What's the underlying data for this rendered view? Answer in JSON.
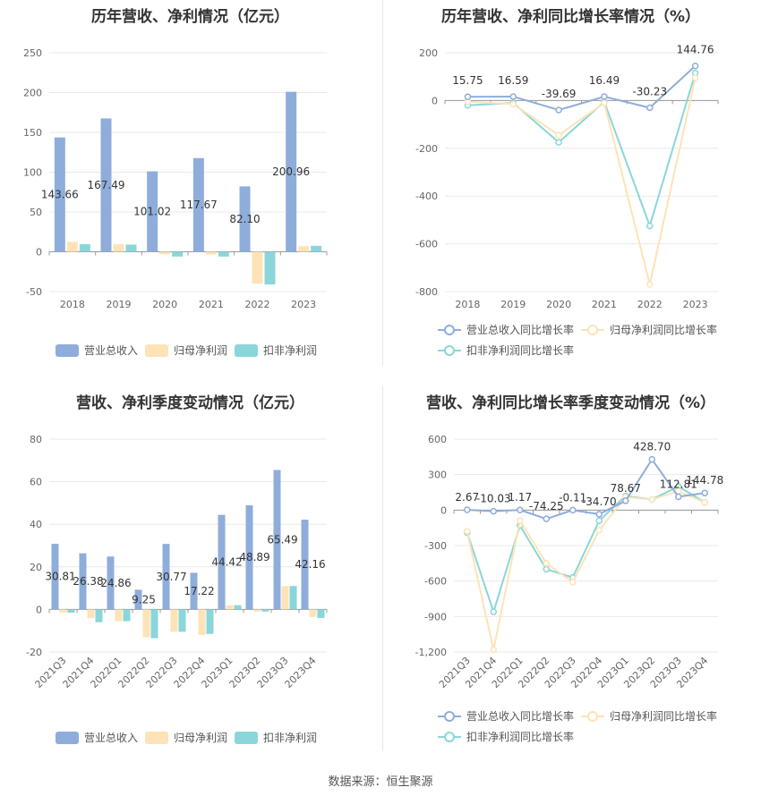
{
  "source": "数据来源：恒生聚源",
  "colors": {
    "revenue": "#8eaddb",
    "net_profit": "#fde3b6",
    "deducted": "#8ad6d9",
    "grid": "#e8e8e8",
    "axis": "#999999",
    "text": "#666666"
  },
  "chart_data": [
    {
      "type": "bar",
      "title": "历年营收、净利情况（亿元）",
      "categories": [
        "2018",
        "2019",
        "2020",
        "2021",
        "2022",
        "2023"
      ],
      "series": [
        {
          "name": "营业总收入",
          "values": [
            143.66,
            167.49,
            101.02,
            117.67,
            82.1,
            200.96
          ]
        },
        {
          "name": "归母净利润",
          "values": [
            12.5,
            9.5,
            -3.0,
            -3.5,
            -40.0,
            7.0
          ]
        },
        {
          "name": "扣非净利润",
          "values": [
            9.5,
            9.0,
            -6.0,
            -6.0,
            -41.0,
            7.5
          ]
        }
      ],
      "data_labels": [
        "143.66",
        "167.49",
        "101.02",
        "117.67",
        "82.10",
        "200.96"
      ],
      "ylim": [
        -50,
        250
      ],
      "yticks": [
        "-50",
        "0",
        "50",
        "100",
        "150",
        "200",
        "250"
      ],
      "grid": true,
      "legend": "bottom"
    },
    {
      "type": "line",
      "title": "历年营收、净利同比增长率情况（%）",
      "categories": [
        "2018",
        "2019",
        "2020",
        "2021",
        "2022",
        "2023"
      ],
      "series": [
        {
          "name": "营业总收入同比增长率",
          "values": [
            15.75,
            16.59,
            -39.69,
            16.49,
            -30.23,
            144.76
          ]
        },
        {
          "name": "归母净利润同比增长率",
          "values": [
            -5,
            -15,
            -145,
            -10,
            -770,
            95
          ]
        },
        {
          "name": "扣非净利润同比增长率",
          "values": [
            -20,
            -10,
            -175,
            -5,
            -525,
            115
          ]
        }
      ],
      "data_labels": [
        "15.75",
        "16.59",
        "-39.69",
        "16.49",
        "-30.23",
        "144.76"
      ],
      "ylim": [
        -800,
        200
      ],
      "yticks": [
        "-800",
        "-600",
        "-400",
        "-200",
        "0",
        "200"
      ],
      "grid": true,
      "legend": "bottom"
    },
    {
      "type": "bar",
      "title": "营收、净利季度变动情况（亿元）",
      "categories": [
        "2021Q3",
        "2021Q4",
        "2022Q1",
        "2022Q2",
        "2022Q3",
        "2022Q4",
        "2023Q1",
        "2023Q2",
        "2023Q3",
        "2023Q4"
      ],
      "series": [
        {
          "name": "营业总收入",
          "values": [
            30.81,
            26.38,
            24.86,
            9.25,
            30.77,
            17.22,
            44.42,
            48.89,
            65.49,
            42.16
          ]
        },
        {
          "name": "归母净利润",
          "values": [
            -1.5,
            -4.0,
            -5.5,
            -13.0,
            -10.5,
            -12.0,
            2.0,
            -1.0,
            11.0,
            -3.5
          ]
        },
        {
          "name": "扣非净利润",
          "values": [
            -1.5,
            -6.0,
            -5.5,
            -13.5,
            -10.5,
            -11.5,
            2.0,
            -1.0,
            11.0,
            -4.0
          ]
        }
      ],
      "data_labels": [
        "30.81",
        "26.38",
        "24.86",
        "9.25",
        "30.77",
        "17.22",
        "44.42",
        "48.89",
        "65.49",
        "42.16"
      ],
      "ylim": [
        -20,
        80
      ],
      "yticks": [
        "-20",
        "0",
        "20",
        "40",
        "60",
        "80"
      ],
      "grid": true,
      "legend": "bottom"
    },
    {
      "type": "line",
      "title": "营收、净利同比增长率季度变动情况（%）",
      "categories": [
        "2021Q3",
        "2021Q4",
        "2022Q1",
        "2022Q2",
        "2022Q3",
        "2022Q4",
        "2023Q1",
        "2023Q2",
        "2023Q3",
        "2023Q4"
      ],
      "series": [
        {
          "name": "营业总收入同比增长率",
          "values": [
            2.67,
            -10.03,
            1.17,
            -74.25,
            -0.11,
            -34.7,
            78.67,
            428.7,
            112.81,
            144.78
          ]
        },
        {
          "name": "归母净利润同比增长率",
          "values": [
            -180,
            -1180,
            -90,
            -450,
            -610,
            -170,
            110,
            90,
            160,
            65
          ]
        },
        {
          "name": "扣非净利润同比增长率",
          "values": [
            -190,
            -860,
            -130,
            -500,
            -570,
            -90,
            120,
            90,
            200,
            65
          ]
        }
      ],
      "data_labels": [
        "2.67",
        "-10.03",
        "1.17",
        "-74.25",
        "-0.11",
        "-34.70",
        "78.67",
        "428.70",
        "112.81",
        "144.78"
      ],
      "ylim": [
        -1200,
        600
      ],
      "yticks": [
        "-1,200",
        "-900",
        "-600",
        "-300",
        "0",
        "300",
        "600"
      ],
      "grid": true,
      "legend": "bottom"
    }
  ]
}
